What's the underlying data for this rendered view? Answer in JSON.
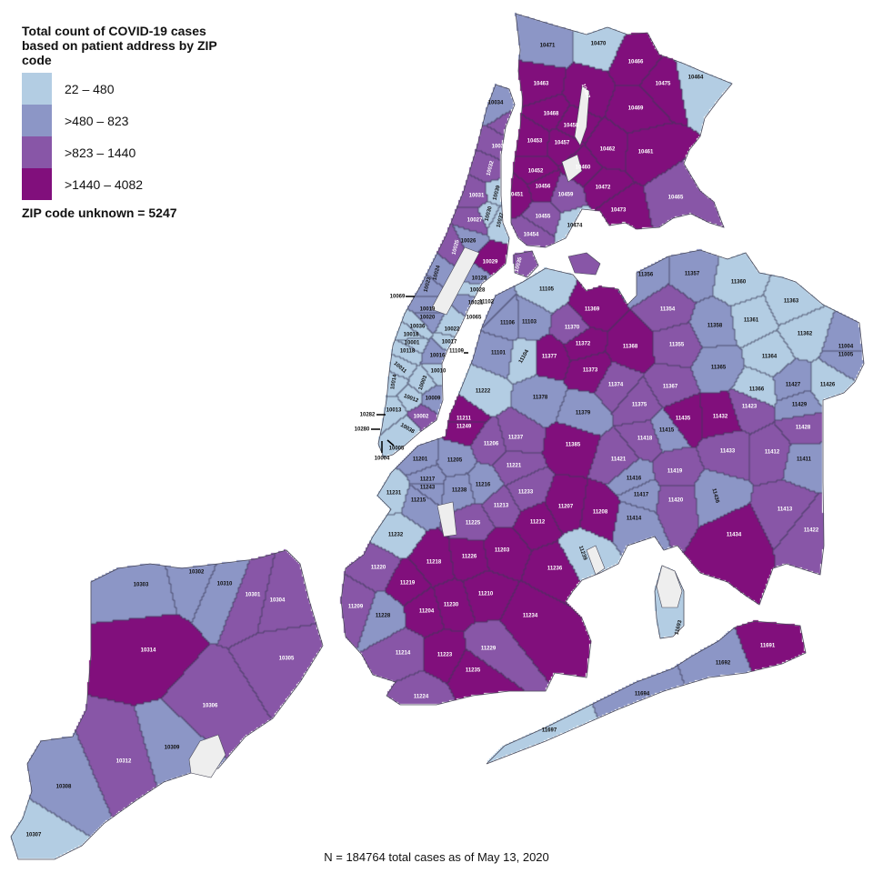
{
  "legend": {
    "title": "Total count of COVID-19 cases based on patient address by ZIP code",
    "items": [
      {
        "label": "22 – 480",
        "color": "#b3cde3"
      },
      {
        "label": ">480 – 823",
        "color": "#8c96c6"
      },
      {
        "label": ">823 – 1440",
        "color": "#8856a7"
      },
      {
        "label": ">1440 – 4082",
        "color": "#810f7c"
      }
    ],
    "unknown": "ZIP code unknown = 5247"
  },
  "footnote": "N = 184764 total cases as of May 13, 2020",
  "colors": {
    "no_data": "#eeeeee",
    "border": "#4a4a5a",
    "dark_text": "#111111",
    "light_text": "#ffffff"
  },
  "zip_codes": [
    {
      "zip": "10471",
      "c": 1
    },
    {
      "zip": "10470",
      "c": 0
    },
    {
      "zip": "10466",
      "c": 3
    },
    {
      "zip": "10475",
      "c": 3
    },
    {
      "zip": "10464",
      "c": 0
    },
    {
      "zip": "10463",
      "c": 3
    },
    {
      "zip": "10467",
      "c": 3
    },
    {
      "zip": "10034",
      "c": 1
    },
    {
      "zip": "10468",
      "c": 3
    },
    {
      "zip": "10458",
      "c": 3
    },
    {
      "zip": "10469",
      "c": 3
    },
    {
      "zip": "10453",
      "c": 3
    },
    {
      "zip": "10457",
      "c": 3
    },
    {
      "zip": "10462",
      "c": 3
    },
    {
      "zip": "10461",
      "c": 3
    },
    {
      "zip": "10452",
      "c": 3
    },
    {
      "zip": "10460",
      "c": 3
    },
    {
      "zip": "10451",
      "c": 3
    },
    {
      "zip": "10456",
      "c": 3
    },
    {
      "zip": "10459",
      "c": 2
    },
    {
      "zip": "10472",
      "c": 3
    },
    {
      "zip": "10473",
      "c": 3
    },
    {
      "zip": "10465",
      "c": 2
    },
    {
      "zip": "10455",
      "c": 2
    },
    {
      "zip": "10454",
      "c": 2
    },
    {
      "zip": "10474",
      "c": 0
    },
    {
      "zip": "10040",
      "c": 2
    },
    {
      "zip": "10033",
      "c": 2
    },
    {
      "zip": "10032",
      "c": 2
    },
    {
      "zip": "10031",
      "c": 2
    },
    {
      "zip": "10039",
      "c": 0
    },
    {
      "zip": "10030",
      "c": 0
    },
    {
      "zip": "10037",
      "c": 0
    },
    {
      "zip": "10027",
      "c": 2
    },
    {
      "zip": "10026",
      "c": 1
    },
    {
      "zip": "10025",
      "c": 2
    },
    {
      "zip": "10029",
      "c": 3
    },
    {
      "zip": "10035",
      "c": 2
    },
    {
      "zip": "10024",
      "c": 1
    },
    {
      "zip": "10023",
      "c": 1
    },
    {
      "zip": "10128",
      "c": 1
    },
    {
      "zip": "10028",
      "c": 0
    },
    {
      "zip": "10021",
      "c": 1
    },
    {
      "zip": "10065",
      "c": 0
    },
    {
      "zip": "10019",
      "c": 1
    },
    {
      "zip": "10020",
      "c": 1
    },
    {
      "zip": "10036",
      "c": 0
    },
    {
      "zip": "10018",
      "c": 0
    },
    {
      "zip": "10001",
      "c": 0
    },
    {
      "zip": "10118",
      "c": 0
    },
    {
      "zip": "10022",
      "c": 0
    },
    {
      "zip": "10017",
      "c": 0
    },
    {
      "zip": "10016",
      "c": 1
    },
    {
      "zip": "10011",
      "c": 0
    },
    {
      "zip": "10010",
      "c": 0
    },
    {
      "zip": "10003",
      "c": 0
    },
    {
      "zip": "10014",
      "c": 0
    },
    {
      "zip": "10009",
      "c": 1
    },
    {
      "zip": "10012",
      "c": 0
    },
    {
      "zip": "10013",
      "c": 0
    },
    {
      "zip": "10002",
      "c": 2
    },
    {
      "zip": "10038",
      "c": 0
    },
    {
      "zip": "11105",
      "c": 0
    },
    {
      "zip": "11102",
      "c": 1
    },
    {
      "zip": "11106",
      "c": 1
    },
    {
      "zip": "11103",
      "c": 1
    },
    {
      "zip": "11369",
      "c": 3
    },
    {
      "zip": "11370",
      "c": 2
    },
    {
      "zip": "11372",
      "c": 3
    },
    {
      "zip": "11368",
      "c": 3
    },
    {
      "zip": "11101",
      "c": 1
    },
    {
      "zip": "11104",
      "c": 0
    },
    {
      "zip": "11377",
      "c": 3
    },
    {
      "zip": "11373",
      "c": 3
    },
    {
      "zip": "11374",
      "c": 2
    },
    {
      "zip": "11222",
      "c": 0
    },
    {
      "zip": "11378",
      "c": 1
    },
    {
      "zip": "11379",
      "c": 1
    },
    {
      "zip": "11375",
      "c": 2
    },
    {
      "zip": "11211",
      "c": 3
    },
    {
      "zip": "11249",
      "c": 3
    },
    {
      "zip": "11237",
      "c": 2
    },
    {
      "zip": "11385",
      "c": 3
    },
    {
      "zip": "11206",
      "c": 2
    },
    {
      "zip": "11418",
      "c": 2
    },
    {
      "zip": "11421",
      "c": 2
    },
    {
      "zip": "11201",
      "c": 1
    },
    {
      "zip": "11205",
      "c": 1
    },
    {
      "zip": "11221",
      "c": 2
    },
    {
      "zip": "11416",
      "c": 1
    },
    {
      "zip": "11356",
      "c": 1
    },
    {
      "zip": "11357",
      "c": 1
    },
    {
      "zip": "11360",
      "c": 0
    },
    {
      "zip": "11363",
      "c": 0
    },
    {
      "zip": "11354",
      "c": 2
    },
    {
      "zip": "11358",
      "c": 1
    },
    {
      "zip": "11361",
      "c": 0
    },
    {
      "zip": "11362",
      "c": 0
    },
    {
      "zip": "11355",
      "c": 2
    },
    {
      "zip": "11364",
      "c": 0
    },
    {
      "zip": "11004",
      "c": 1
    },
    {
      "zip": "11005",
      "c": 1
    },
    {
      "zip": "11365",
      "c": 1
    },
    {
      "zip": "11367",
      "c": 2
    },
    {
      "zip": "11366",
      "c": 0
    },
    {
      "zip": "11427",
      "c": 1
    },
    {
      "zip": "11426",
      "c": 0
    },
    {
      "zip": "11423",
      "c": 2
    },
    {
      "zip": "11429",
      "c": 1
    },
    {
      "zip": "11435",
      "c": 3
    },
    {
      "zip": "11432",
      "c": 3
    },
    {
      "zip": "11415",
      "c": 1
    },
    {
      "zip": "11428",
      "c": 2
    },
    {
      "zip": "11433",
      "c": 2
    },
    {
      "zip": "11412",
      "c": 2
    },
    {
      "zip": "11411",
      "c": 1
    },
    {
      "zip": "11419",
      "c": 2
    },
    {
      "zip": "11436",
      "c": 1
    },
    {
      "zip": "11417",
      "c": 1
    },
    {
      "zip": "11420",
      "c": 2
    },
    {
      "zip": "11413",
      "c": 2
    },
    {
      "zip": "11414",
      "c": 1
    },
    {
      "zip": "11434",
      "c": 3
    },
    {
      "zip": "11422",
      "c": 2
    },
    {
      "zip": "11217",
      "c": 1
    },
    {
      "zip": "11243",
      "c": 1
    },
    {
      "zip": "11231",
      "c": 0
    },
    {
      "zip": "11238",
      "c": 1
    },
    {
      "zip": "11216",
      "c": 1
    },
    {
      "zip": "11215",
      "c": 1
    },
    {
      "zip": "11233",
      "c": 2
    },
    {
      "zip": "11213",
      "c": 2
    },
    {
      "zip": "11207",
      "c": 3
    },
    {
      "zip": "11208",
      "c": 3
    },
    {
      "zip": "11225",
      "c": 2
    },
    {
      "zip": "11212",
      "c": 3
    },
    {
      "zip": "11232",
      "c": 0
    },
    {
      "zip": "11203",
      "c": 3
    },
    {
      "zip": "11218",
      "c": 3
    },
    {
      "zip": "11226",
      "c": 3
    },
    {
      "zip": "11239",
      "c": 0
    },
    {
      "zip": "11236",
      "c": 3
    },
    {
      "zip": "11220",
      "c": 2
    },
    {
      "zip": "11219",
      "c": 3
    },
    {
      "zip": "11210",
      "c": 3
    },
    {
      "zip": "11230",
      "c": 3
    },
    {
      "zip": "11209",
      "c": 2
    },
    {
      "zip": "11204",
      "c": 3
    },
    {
      "zip": "11228",
      "c": 1
    },
    {
      "zip": "11234",
      "c": 3
    },
    {
      "zip": "11214",
      "c": 2
    },
    {
      "zip": "11223",
      "c": 3
    },
    {
      "zip": "11229",
      "c": 2
    },
    {
      "zip": "11235",
      "c": 3
    },
    {
      "zip": "11224",
      "c": 2
    },
    {
      "zip": "11693",
      "c": 0
    },
    {
      "zip": "11691",
      "c": 3
    },
    {
      "zip": "11692",
      "c": 1
    },
    {
      "zip": "11694",
      "c": 1
    },
    {
      "zip": "11697",
      "c": 0
    },
    {
      "zip": "10303",
      "c": 1
    },
    {
      "zip": "10302",
      "c": 1
    },
    {
      "zip": "10310",
      "c": 1
    },
    {
      "zip": "10301",
      "c": 2
    },
    {
      "zip": "10304",
      "c": 2
    },
    {
      "zip": "10314",
      "c": 3
    },
    {
      "zip": "10305",
      "c": 2
    },
    {
      "zip": "10306",
      "c": 2
    },
    {
      "zip": "10309",
      "c": 1
    },
    {
      "zip": "10312",
      "c": 2
    },
    {
      "zip": "10308",
      "c": 1
    },
    {
      "zip": "10307",
      "c": 0
    }
  ],
  "callout_zips": [
    "10069",
    "10282",
    "10280",
    "10005",
    "10004",
    "11109"
  ]
}
